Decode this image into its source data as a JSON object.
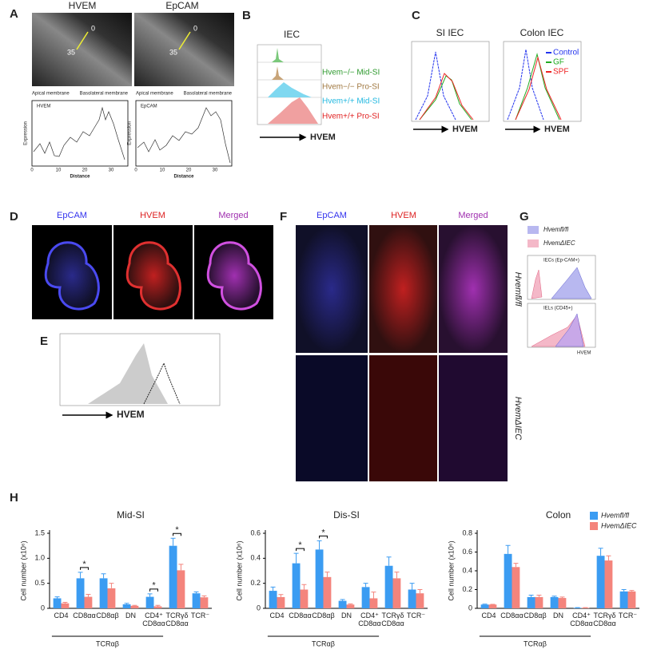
{
  "panels": {
    "A": {
      "label": "A",
      "images": [
        "HVEM",
        "EpCAM"
      ],
      "image_marks": [
        "0",
        "35"
      ],
      "plots": [
        {
          "legend": "HVEM"
        },
        {
          "legend": "EpCAM"
        }
      ],
      "apical": "Apical membrane",
      "basolateral": "Basolateral membrane",
      "ylabel": "Expression",
      "xlabel": "Distance",
      "xticks": [
        "0",
        "10",
        "20",
        "30"
      ]
    },
    "B": {
      "label": "B",
      "title": "IEC",
      "legend": [
        "Hvem−/− Mid-SI",
        "Hvem−/− Pro-SI",
        "Hvem+/+ Mid-SI",
        "Hvem+/+ Pro-SI"
      ],
      "axis": "HVEM"
    },
    "C": {
      "label": "C",
      "titles": [
        "SI IEC",
        "Colon IEC"
      ],
      "legend": [
        "Control",
        "GF",
        "SPF"
      ],
      "axis": "HVEM"
    },
    "D": {
      "label": "D",
      "titles": [
        "EpCAM",
        "HVEM",
        "Merged"
      ]
    },
    "E": {
      "label": "E",
      "axis": "HVEM"
    },
    "F": {
      "label": "F",
      "titles": [
        "EpCAM",
        "HVEM",
        "Merged"
      ],
      "rows": [
        "Hvemfl/fl",
        "HvemΔIEC"
      ]
    },
    "G": {
      "label": "G",
      "legend": [
        "Hvemfl/fl",
        "HvemΔIEC"
      ],
      "boxes": [
        "IECs (Ep-CAM+)",
        "IELs (CD45+)"
      ],
      "axis": "HVEM"
    },
    "H": {
      "label": "H"
    }
  },
  "chart_data": [
    {
      "type": "bar",
      "title": "Mid-SI",
      "ylabel": "Cell number (x10⁶)",
      "group_label": "TCRαβ",
      "categories": [
        "CD4",
        "CD8αα",
        "CD8αβ",
        "DN",
        "CD4⁺\nCD8αα",
        "TCRγδ\nCD8αα",
        "TCR⁻"
      ],
      "ylim": [
        0,
        1.5
      ],
      "yticks": [
        0,
        0.5,
        {
          "value": 1,
          "label": "1.0"
        },
        1.5
      ],
      "significance": [
        null,
        "*",
        null,
        null,
        "*",
        "*",
        null
      ],
      "series": [
        {
          "color": "#3b9cf2",
          "values": [
            0.2,
            0.6,
            0.6,
            0.08,
            0.23,
            1.25,
            0.3
          ],
          "errors": [
            0.03,
            0.12,
            0.09,
            0.02,
            0.06,
            0.15,
            0.03
          ]
        },
        {
          "color": "#f4847c",
          "values": [
            0.1,
            0.23,
            0.4,
            0.05,
            0.04,
            0.76,
            0.22
          ],
          "errors": [
            0.02,
            0.05,
            0.1,
            0.01,
            0.02,
            0.12,
            0.03
          ]
        }
      ]
    },
    {
      "type": "bar",
      "title": "Dis-SI",
      "ylabel": "Cell number (x10⁶)",
      "group_label": "TCRαβ",
      "categories": [
        "CD4",
        "CD8αα",
        "CD8αβ",
        "DN",
        "CD4⁺\nCD8αα",
        "TCRγδ\nCD8αα",
        "TCR⁻"
      ],
      "ylim": [
        0,
        0.6
      ],
      "yticks": [
        0,
        0.2,
        0.4,
        0.6
      ],
      "significance": [
        null,
        "*",
        "*",
        null,
        null,
        null,
        null
      ],
      "series": [
        {
          "color": "#3b9cf2",
          "values": [
            0.14,
            0.36,
            0.47,
            0.06,
            0.17,
            0.34,
            0.15
          ],
          "errors": [
            0.03,
            0.08,
            0.07,
            0.01,
            0.03,
            0.07,
            0.05
          ]
        },
        {
          "color": "#f4847c",
          "values": [
            0.09,
            0.15,
            0.25,
            0.03,
            0.08,
            0.24,
            0.12
          ],
          "errors": [
            0.02,
            0.04,
            0.04,
            0.005,
            0.05,
            0.05,
            0.03
          ]
        }
      ]
    },
    {
      "type": "bar",
      "title": "Colon",
      "ylabel": "Cell number (x10⁶)",
      "group_label": "TCRαβ",
      "categories": [
        "CD4",
        "CD8αα",
        "CD8αβ",
        "DN",
        "CD4⁺\nCD8αα",
        "TCRγδ\nCD8αα",
        "TCR⁻"
      ],
      "ylim": [
        0,
        0.8
      ],
      "yticks": [
        0,
        0.2,
        0.4,
        0.6,
        0.8
      ],
      "series": [
        {
          "name": "Hvemfl/fl",
          "color": "#3b9cf2",
          "values": [
            0.04,
            0.58,
            0.12,
            0.12,
            0.005,
            0.56,
            0.18
          ],
          "errors": [
            0.005,
            0.09,
            0.02,
            0.01,
            0.002,
            0.08,
            0.02
          ]
        },
        {
          "name": "HvemΔIEC",
          "color": "#f4847c",
          "values": [
            0.04,
            0.44,
            0.12,
            0.11,
            0.005,
            0.51,
            0.18
          ],
          "errors": [
            0.003,
            0.04,
            0.02,
            0.01,
            0.002,
            0.05,
            0.01
          ]
        }
      ]
    }
  ]
}
